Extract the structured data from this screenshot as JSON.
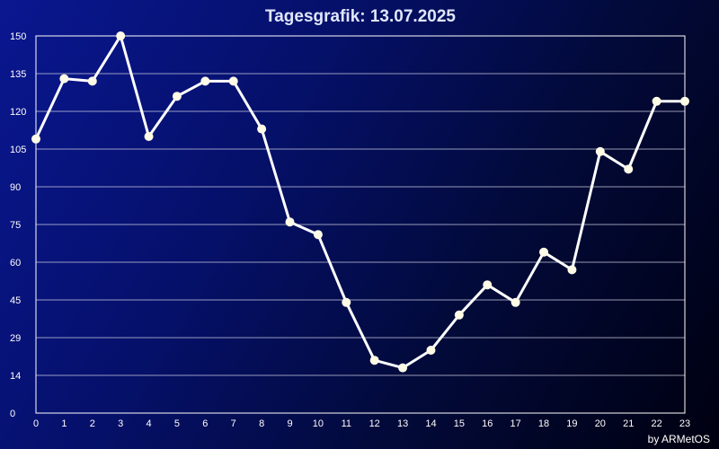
{
  "chart_data": {
    "type": "line",
    "title": "Tagesgrafik: 13.07.2025",
    "xlabel": "",
    "ylabel": "",
    "x": [
      0,
      1,
      2,
      3,
      4,
      5,
      6,
      7,
      8,
      9,
      10,
      11,
      12,
      13,
      14,
      15,
      16,
      17,
      18,
      19,
      20,
      21,
      22,
      23
    ],
    "x_tick_labels": [
      "0",
      "1",
      "2",
      "3",
      "4",
      "5",
      "6",
      "7",
      "8",
      "9",
      "10",
      "11",
      "12",
      "13",
      "14",
      "15",
      "16",
      "17",
      "18",
      "19",
      "20",
      "21",
      "22",
      "23"
    ],
    "y_tick_labels": [
      "0",
      "14",
      "29",
      "45",
      "60",
      "75",
      "90",
      "105",
      "120",
      "135",
      "150"
    ],
    "ylim": [
      0,
      150
    ],
    "series": [
      {
        "values": [
          109,
          133,
          132,
          150,
          110,
          126,
          132,
          132,
          113,
          76,
          71,
          44,
          21,
          18,
          25,
          39,
          51,
          44,
          64,
          57,
          104,
          97,
          124,
          124
        ]
      }
    ],
    "grid": true,
    "line_color": "#ffffff",
    "marker_color": "#fffbe6"
  },
  "credit": "by ARMetOS"
}
